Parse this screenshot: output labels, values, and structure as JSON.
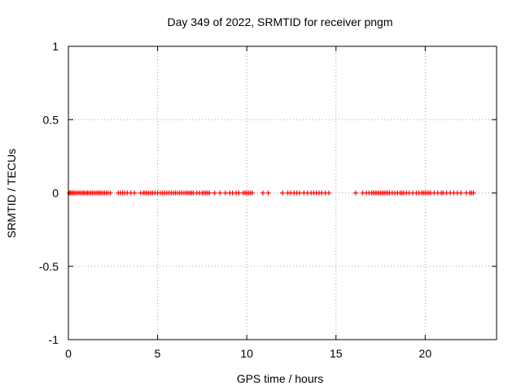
{
  "chart_data": {
    "type": "scatter",
    "title": "Day 349 of 2022, SRMTID for receiver pngm",
    "xlabel": "GPS time / hours",
    "ylabel": "SRMTID / TECUs",
    "xlim": [
      0,
      24
    ],
    "ylim": [
      -1,
      1
    ],
    "xticks": [
      0,
      5,
      10,
      15,
      20
    ],
    "xtick_labels": [
      "0",
      "5",
      "10",
      "15",
      "20"
    ],
    "yticks": [
      -1,
      -0.5,
      0,
      0.5,
      1
    ],
    "ytick_labels": [
      "-1",
      "-0.5",
      "0",
      "0.5",
      "1"
    ],
    "grid": true,
    "marker": "plus",
    "marker_color": "#ff0000",
    "series": [
      {
        "y_value": 0,
        "x": [
          0.05,
          0.12,
          0.2,
          0.28,
          0.36,
          0.45,
          0.55,
          0.64,
          0.73,
          0.82,
          0.9,
          1.0,
          1.08,
          1.17,
          1.26,
          1.35,
          1.45,
          1.55,
          1.64,
          1.73,
          1.82,
          1.92,
          2.02,
          2.12,
          2.22,
          2.35,
          2.8,
          2.92,
          3.04,
          3.16,
          3.3,
          3.5,
          3.7,
          4.05,
          4.2,
          4.3,
          4.4,
          4.5,
          4.62,
          4.72,
          4.85,
          5.0,
          5.15,
          5.28,
          5.4,
          5.52,
          5.64,
          5.76,
          5.88,
          6.0,
          6.12,
          6.24,
          6.36,
          6.48,
          6.6,
          6.7,
          6.8,
          6.9,
          7.0,
          7.2,
          7.35,
          7.5,
          7.6,
          7.7,
          7.8,
          7.9,
          8.2,
          8.5,
          8.8,
          9.05,
          9.2,
          9.4,
          9.55,
          9.8,
          9.9,
          10.0,
          10.1,
          10.2,
          10.3,
          10.9,
          11.2,
          12.0,
          12.3,
          12.45,
          12.65,
          12.8,
          12.95,
          13.2,
          13.4,
          13.6,
          13.75,
          13.9,
          14.05,
          14.2,
          14.4,
          14.6,
          16.1,
          16.5,
          16.7,
          16.85,
          17.0,
          17.1,
          17.2,
          17.3,
          17.4,
          17.5,
          17.6,
          17.7,
          17.8,
          17.9,
          18.0,
          18.15,
          18.3,
          18.45,
          18.6,
          18.7,
          18.8,
          18.95,
          19.1,
          19.3,
          19.5,
          19.65,
          19.8,
          19.9,
          20.0,
          20.1,
          20.2,
          20.3,
          20.5,
          20.7,
          20.9,
          21.0,
          21.2,
          21.4,
          21.6,
          21.8,
          22.0,
          22.3,
          22.5,
          22.6,
          22.7
        ]
      }
    ]
  }
}
